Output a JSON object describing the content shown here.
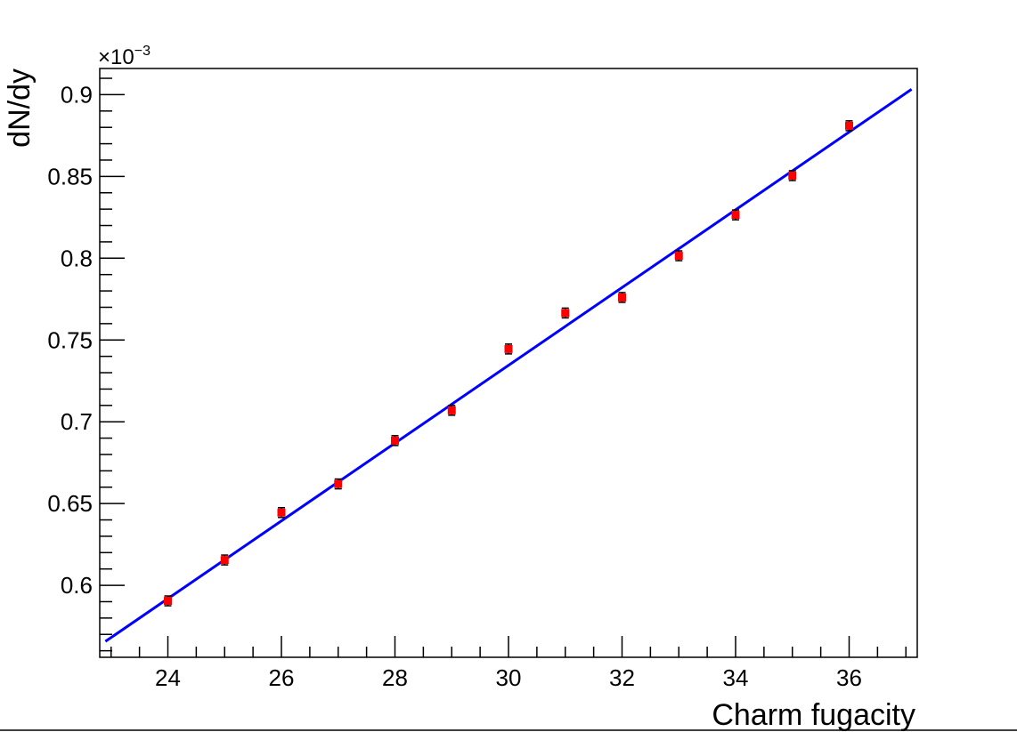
{
  "chart_data": {
    "type": "scatter",
    "title": "",
    "xlabel": "Charm fugacity",
    "ylabel": "dN/dy",
    "y_exponent_label": "×10",
    "y_exponent_power": "−3",
    "xlim": [
      22.8,
      37.2
    ],
    "ylim": [
      0.556,
      0.916
    ],
    "x_major_ticks": [
      24,
      26,
      28,
      30,
      32,
      34,
      36
    ],
    "x_tick_labels": [
      "24",
      "26",
      "28",
      "30",
      "32",
      "34",
      "36"
    ],
    "y_major_ticks": [
      0.6,
      0.65,
      0.7,
      0.75,
      0.8,
      0.85,
      0.9
    ],
    "y_tick_labels": [
      "0.6",
      "0.65",
      "0.7",
      "0.75",
      "0.8",
      "0.85",
      "0.9"
    ],
    "grid": false,
    "legend": "none",
    "series": [
      {
        "kind": "points",
        "color": "#ff0000",
        "error_color": "#000000",
        "x": [
          24,
          25,
          26,
          27,
          28,
          29,
          30,
          31,
          32,
          33,
          34,
          35,
          36
        ],
        "y": [
          0.5905,
          0.6155,
          0.6445,
          0.662,
          0.6885,
          0.707,
          0.7445,
          0.7665,
          0.776,
          0.8015,
          0.8265,
          0.8505,
          0.881
        ],
        "yerr": [
          0.003,
          0.003,
          0.003,
          0.003,
          0.003,
          0.003,
          0.003,
          0.003,
          0.003,
          0.003,
          0.003,
          0.003,
          0.003
        ]
      },
      {
        "kind": "fit-line",
        "color": "#0000ff",
        "x": [
          22.9,
          37.1
        ],
        "y": [
          0.5657,
          0.9033
        ]
      }
    ]
  }
}
